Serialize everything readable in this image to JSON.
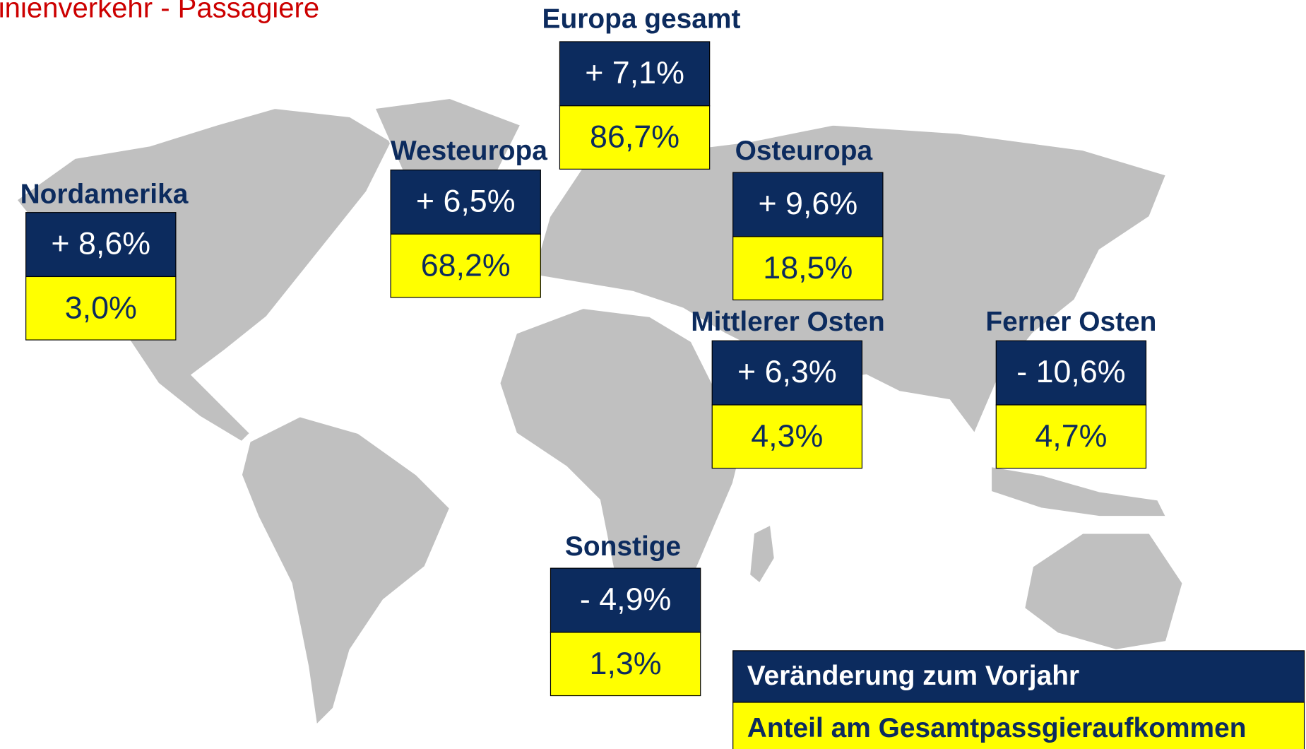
{
  "title": "inienverkehr - Passagiere",
  "regions": [
    {
      "name": "Europa gesamt",
      "change": "+ 7,1%",
      "share": "86,7%"
    },
    {
      "name": "Westeuropa",
      "change": "+ 6,5%",
      "share": "68,2%"
    },
    {
      "name": "Osteuropa",
      "change": "+ 9,6%",
      "share": "18,5%"
    },
    {
      "name": "Nordamerika",
      "change": "+ 8,6%",
      "share": "3,0%"
    },
    {
      "name": "Mittlerer Osten",
      "change": "+ 6,3%",
      "share": "4,3%"
    },
    {
      "name": "Ferner Osten",
      "change": "- 10,6%",
      "share": "4,7%"
    },
    {
      "name": "Sonstige",
      "change": "- 4,9%",
      "share": "1,3%"
    }
  ],
  "legend": {
    "change": "Veränderung zum Vorjahr",
    "share": "Anteil am Gesamtpassgieraufkommen"
  }
}
